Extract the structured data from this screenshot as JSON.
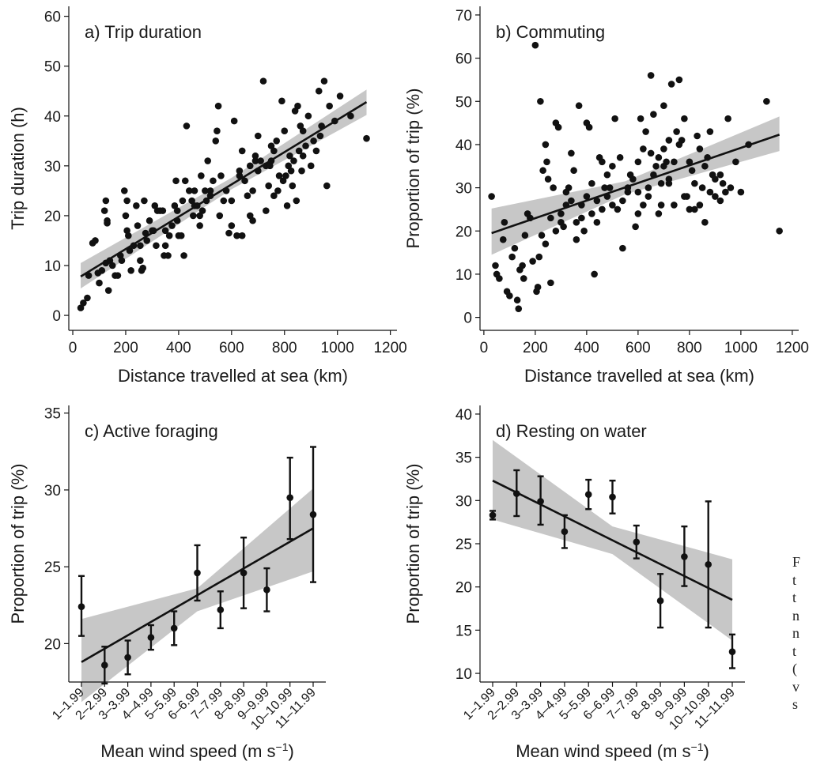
{
  "chart_data": [
    {
      "type": "scatter",
      "title": "a) Trip duration",
      "xlabel": "Distance travelled at sea (km)",
      "ylabel": "Trip duration (h)",
      "xlim": [
        -15,
        1225
      ],
      "ylim": [
        -3,
        62
      ],
      "xticks": [
        0,
        200,
        400,
        600,
        800,
        1000,
        1200
      ],
      "yticks": [
        0,
        10,
        20,
        30,
        40,
        50,
        60
      ],
      "fit": {
        "x": [
          30,
          1110
        ],
        "y": [
          7.8,
          42.8
        ]
      },
      "ci": {
        "x": [
          30,
          600,
          1110
        ],
        "upper": [
          10.5,
          27.6,
          45.3
        ],
        "lower": [
          5.4,
          25.3,
          40.2
        ]
      },
      "points": [
        [
          30,
          1.5
        ],
        [
          40,
          2.5
        ],
        [
          55,
          3.5
        ],
        [
          60,
          8
        ],
        [
          75,
          14.5
        ],
        [
          85,
          15
        ],
        [
          95,
          8.5
        ],
        [
          100,
          6.5
        ],
        [
          110,
          9
        ],
        [
          120,
          21
        ],
        [
          125,
          23
        ],
        [
          130,
          18.5
        ],
        [
          130,
          19
        ],
        [
          125,
          10.5
        ],
        [
          135,
          5
        ],
        [
          140,
          11
        ],
        [
          150,
          10
        ],
        [
          160,
          8
        ],
        [
          170,
          8
        ],
        [
          180,
          12
        ],
        [
          185,
          11
        ],
        [
          195,
          25
        ],
        [
          205,
          23
        ],
        [
          200,
          20
        ],
        [
          205,
          17
        ],
        [
          210,
          16
        ],
        [
          215,
          13
        ],
        [
          220,
          9
        ],
        [
          230,
          14
        ],
        [
          240,
          22
        ],
        [
          245,
          18
        ],
        [
          255,
          11
        ],
        [
          260,
          9
        ],
        [
          265,
          9.5
        ],
        [
          270,
          23
        ],
        [
          275,
          16.5
        ],
        [
          280,
          15
        ],
        [
          290,
          19
        ],
        [
          300,
          17
        ],
        [
          305,
          17
        ],
        [
          315,
          14
        ],
        [
          320,
          21
        ],
        [
          330,
          21
        ],
        [
          340,
          21
        ],
        [
          345,
          12
        ],
        [
          350,
          14
        ],
        [
          360,
          12
        ],
        [
          365,
          16
        ],
        [
          375,
          18
        ],
        [
          385,
          22
        ],
        [
          390,
          27
        ],
        [
          395,
          21
        ],
        [
          400,
          16
        ],
        [
          410,
          16
        ],
        [
          420,
          12
        ],
        [
          425,
          27
        ],
        [
          430,
          38
        ],
        [
          440,
          25
        ],
        [
          450,
          23
        ],
        [
          455,
          20
        ],
        [
          460,
          22
        ],
        [
          470,
          22
        ],
        [
          480,
          18
        ],
        [
          485,
          28
        ],
        [
          490,
          21
        ],
        [
          500,
          25
        ],
        [
          510,
          31
        ],
        [
          520,
          25
        ],
        [
          530,
          27
        ],
        [
          540,
          35
        ],
        [
          545,
          37
        ],
        [
          550,
          42
        ],
        [
          560,
          28
        ],
        [
          570,
          23
        ],
        [
          580,
          25
        ],
        [
          590,
          16.5
        ],
        [
          600,
          18
        ],
        [
          610,
          39
        ],
        [
          620,
          16
        ],
        [
          630,
          28
        ],
        [
          640,
          33
        ],
        [
          650,
          27
        ],
        [
          660,
          24
        ],
        [
          670,
          20
        ],
        [
          680,
          25
        ],
        [
          690,
          31
        ],
        [
          700,
          36
        ],
        [
          710,
          31
        ],
        [
          720,
          47
        ],
        [
          730,
          30
        ],
        [
          740,
          26
        ],
        [
          750,
          31
        ],
        [
          760,
          33
        ],
        [
          770,
          35
        ],
        [
          780,
          28
        ],
        [
          790,
          43
        ],
        [
          800,
          37
        ],
        [
          810,
          22
        ],
        [
          820,
          32
        ],
        [
          830,
          26
        ],
        [
          840,
          41
        ],
        [
          850,
          42
        ],
        [
          860,
          38
        ],
        [
          870,
          37
        ],
        [
          880,
          34
        ],
        [
          890,
          40
        ],
        [
          900,
          30
        ],
        [
          910,
          35
        ],
        [
          920,
          33
        ],
        [
          930,
          45
        ],
        [
          940,
          38
        ],
        [
          950,
          47
        ],
        [
          960,
          26
        ],
        [
          970,
          42
        ],
        [
          990,
          39
        ],
        [
          1010,
          44
        ],
        [
          1050,
          40
        ],
        [
          1110,
          35.5
        ],
        [
          630,
          29
        ],
        [
          680,
          19
        ],
        [
          730,
          21
        ],
        [
          745,
          30
        ],
        [
          760,
          24
        ],
        [
          775,
          25
        ],
        [
          795,
          27
        ],
        [
          805,
          28
        ],
        [
          815,
          30
        ],
        [
          825,
          29
        ],
        [
          835,
          31
        ],
        [
          845,
          23
        ],
        [
          855,
          33
        ],
        [
          865,
          29
        ],
        [
          870,
          32
        ],
        [
          935,
          36
        ],
        [
          555,
          20
        ],
        [
          600,
          23
        ],
        [
          640,
          16
        ],
        [
          670,
          30
        ],
        [
          690,
          32
        ],
        [
          700,
          29
        ],
        [
          750,
          34
        ],
        [
          415,
          23
        ],
        [
          395,
          19
        ],
        [
          460,
          25
        ],
        [
          480,
          20
        ],
        [
          505,
          23
        ],
        [
          520,
          24
        ],
        [
          350,
          17
        ],
        [
          310,
          22
        ],
        [
          255,
          14
        ]
      ]
    },
    {
      "type": "scatter",
      "title": "b) Commuting",
      "xlabel": "Distance travelled at sea (km)",
      "ylabel": "Proportion of trip (%)",
      "xlim": [
        -15,
        1225
      ],
      "ylim": [
        -3,
        72
      ],
      "xticks": [
        0,
        200,
        400,
        600,
        800,
        1000,
        1200
      ],
      "yticks": [
        0,
        10,
        20,
        30,
        40,
        50,
        60,
        70
      ],
      "fit": {
        "x": [
          30,
          1150
        ],
        "y": [
          19.5,
          42.3
        ]
      },
      "ci": {
        "x": [
          30,
          550,
          1150
        ],
        "upper": [
          25.2,
          31.5,
          46.5
        ],
        "lower": [
          14.5,
          28.5,
          38.5
        ]
      },
      "points": [
        [
          30,
          28
        ],
        [
          45,
          12
        ],
        [
          50,
          10
        ],
        [
          60,
          9
        ],
        [
          75,
          18
        ],
        [
          80,
          22
        ],
        [
          90,
          6
        ],
        [
          100,
          5
        ],
        [
          110,
          14
        ],
        [
          120,
          16
        ],
        [
          130,
          4
        ],
        [
          135,
          2
        ],
        [
          140,
          11
        ],
        [
          150,
          12
        ],
        [
          155,
          9
        ],
        [
          160,
          19
        ],
        [
          170,
          24
        ],
        [
          180,
          23
        ],
        [
          190,
          13
        ],
        [
          200,
          63
        ],
        [
          205,
          6
        ],
        [
          210,
          7
        ],
        [
          215,
          14
        ],
        [
          220,
          50
        ],
        [
          225,
          19
        ],
        [
          230,
          34
        ],
        [
          240,
          40
        ],
        [
          245,
          36
        ],
        [
          250,
          32
        ],
        [
          260,
          8
        ],
        [
          270,
          30
        ],
        [
          280,
          45
        ],
        [
          290,
          44
        ],
        [
          300,
          22
        ],
        [
          310,
          21
        ],
        [
          320,
          26
        ],
        [
          330,
          30
        ],
        [
          340,
          38
        ],
        [
          350,
          34
        ],
        [
          360,
          18
        ],
        [
          370,
          49
        ],
        [
          380,
          26
        ],
        [
          390,
          20
        ],
        [
          400,
          45
        ],
        [
          410,
          44
        ],
        [
          420,
          24
        ],
        [
          430,
          10
        ],
        [
          440,
          27
        ],
        [
          450,
          37
        ],
        [
          460,
          25
        ],
        [
          470,
          30
        ],
        [
          480,
          28
        ],
        [
          490,
          30
        ],
        [
          500,
          35
        ],
        [
          510,
          46
        ],
        [
          520,
          25
        ],
        [
          530,
          37
        ],
        [
          540,
          16
        ],
        [
          560,
          29
        ],
        [
          570,
          33
        ],
        [
          580,
          32
        ],
        [
          590,
          21
        ],
        [
          600,
          36
        ],
        [
          610,
          46
        ],
        [
          620,
          39
        ],
        [
          630,
          43
        ],
        [
          640,
          28
        ],
        [
          650,
          56
        ],
        [
          660,
          47
        ],
        [
          670,
          35
        ],
        [
          680,
          24
        ],
        [
          690,
          31
        ],
        [
          700,
          49
        ],
        [
          710,
          36
        ],
        [
          720,
          32
        ],
        [
          730,
          54
        ],
        [
          740,
          26
        ],
        [
          750,
          43
        ],
        [
          760,
          55
        ],
        [
          770,
          41
        ],
        [
          780,
          46
        ],
        [
          790,
          28
        ],
        [
          800,
          36
        ],
        [
          810,
          34
        ],
        [
          820,
          25
        ],
        [
          830,
          42
        ],
        [
          840,
          39
        ],
        [
          850,
          30
        ],
        [
          860,
          22
        ],
        [
          870,
          37
        ],
        [
          880,
          43
        ],
        [
          890,
          33
        ],
        [
          900,
          28
        ],
        [
          920,
          33
        ],
        [
          930,
          31
        ],
        [
          950,
          46
        ],
        [
          960,
          30
        ],
        [
          980,
          36
        ],
        [
          1000,
          29
        ],
        [
          1030,
          40
        ],
        [
          1100,
          50
        ],
        [
          1150,
          20
        ],
        [
          660,
          33
        ],
        [
          700,
          39
        ],
        [
          720,
          41
        ],
        [
          740,
          36
        ],
        [
          760,
          40
        ],
        [
          780,
          28
        ],
        [
          800,
          25
        ],
        [
          820,
          31
        ],
        [
          840,
          26
        ],
        [
          860,
          35
        ],
        [
          880,
          29
        ],
        [
          900,
          32
        ],
        [
          920,
          27
        ],
        [
          940,
          29
        ],
        [
          600,
          24
        ],
        [
          620,
          26
        ],
        [
          560,
          30
        ],
        [
          540,
          27
        ],
        [
          500,
          26
        ],
        [
          480,
          33
        ],
        [
          460,
          36
        ],
        [
          440,
          22
        ],
        [
          420,
          31
        ],
        [
          400,
          28
        ],
        [
          380,
          23
        ],
        [
          360,
          22
        ],
        [
          340,
          27
        ],
        [
          320,
          29
        ],
        [
          300,
          24
        ],
        [
          280,
          20
        ],
        [
          260,
          23
        ],
        [
          240,
          17
        ],
        [
          600,
          29
        ],
        [
          640,
          30
        ],
        [
          680,
          37
        ],
        [
          720,
          31
        ],
        [
          650,
          38
        ],
        [
          690,
          26
        ],
        [
          700,
          35
        ]
      ]
    },
    {
      "type": "errorbar",
      "title": "c) Active foraging",
      "xlabel": "Mean wind speed (m s",
      "xlabel_sup": "−1",
      "xlabel_suffix": ")",
      "ylabel": "Proportion of trip (%)",
      "ylim": [
        17.5,
        35.5
      ],
      "yticks": [
        20,
        25,
        30,
        35
      ],
      "categories": [
        "1–1.99",
        "2–2.99",
        "3–3.99",
        "4–4.99",
        "5–5.99",
        "6–6.99",
        "7–7.99",
        "8–8.99",
        "9–9.99",
        "10–10.99",
        "11–11.99"
      ],
      "means": [
        22.4,
        18.6,
        19.1,
        20.4,
        21.0,
        24.6,
        22.2,
        24.6,
        23.5,
        29.5,
        28.4
      ],
      "lower": [
        20.5,
        17.4,
        18.0,
        19.6,
        19.9,
        22.8,
        21.0,
        22.3,
        22.1,
        26.8,
        24.0
      ],
      "upper": [
        24.4,
        19.8,
        20.2,
        21.2,
        22.1,
        26.4,
        23.4,
        26.9,
        24.9,
        32.1,
        32.8
      ],
      "fit": {
        "x": [
          1,
          11
        ],
        "y": [
          18.8,
          27.5
        ]
      },
      "ci": {
        "x": [
          1,
          6,
          11
        ],
        "upper": [
          21.6,
          23.6,
          30.1
        ],
        "lower": [
          16.2,
          22.1,
          24.7
        ]
      }
    },
    {
      "type": "errorbar",
      "title": "d) Resting on water",
      "xlabel": "Mean wind speed (m s",
      "xlabel_sup": "−1",
      "xlabel_suffix": ")",
      "ylabel": "Proportion of trip (%)",
      "ylim": [
        9,
        41
      ],
      "yticks": [
        10,
        15,
        20,
        25,
        30,
        35,
        40
      ],
      "categories": [
        "1–1.99",
        "2–2.99",
        "3–3.99",
        "4–4.99",
        "5–5.99",
        "6–6.99",
        "7–7.99",
        "8–8.99",
        "9–9.99",
        "10–10.99",
        "11–11.99"
      ],
      "means": [
        28.3,
        30.8,
        29.9,
        26.4,
        30.7,
        30.4,
        25.2,
        18.4,
        23.5,
        22.6,
        12.5
      ],
      "lower": [
        27.8,
        28.2,
        27.2,
        24.5,
        29.0,
        28.5,
        23.3,
        15.3,
        20.1,
        15.3,
        10.6
      ],
      "upper": [
        28.8,
        33.5,
        32.8,
        28.3,
        32.4,
        32.3,
        27.1,
        21.5,
        27.0,
        29.9,
        14.5
      ],
      "fit": {
        "x": [
          1,
          11
        ],
        "y": [
          32.3,
          18.5
        ]
      },
      "ci": {
        "x": [
          1,
          6,
          11
        ],
        "upper": [
          37.0,
          27.0,
          23.2
        ],
        "lower": [
          27.8,
          23.8,
          13.8
        ]
      }
    }
  ],
  "caption_fragment": [
    "F",
    "t",
    "t",
    "n",
    "n",
    "t",
    "(",
    "v",
    "s"
  ]
}
